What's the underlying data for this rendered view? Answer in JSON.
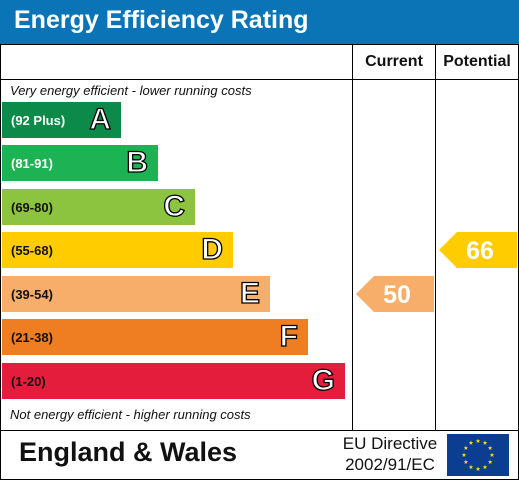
{
  "header": {
    "title": "Energy Efficiency Rating"
  },
  "columns": {
    "current": "Current",
    "potential": "Potential"
  },
  "notes": {
    "top": "Very energy efficient - lower running costs",
    "bottom": "Not energy efficient - higher running costs"
  },
  "bands": [
    {
      "range": "(92 Plus)",
      "letter": "A",
      "color": "#0b8a4a",
      "text_color": "#ffffff"
    },
    {
      "range": "(81-91)",
      "letter": "B",
      "color": "#1db354",
      "text_color": "#ffffff"
    },
    {
      "range": "(69-80)",
      "letter": "C",
      "color": "#8cc43f",
      "text_color": "#111111"
    },
    {
      "range": "(55-68)",
      "letter": "D",
      "color": "#ffcc00",
      "text_color": "#111111"
    },
    {
      "range": "(39-54)",
      "letter": "E",
      "color": "#f7ae6b",
      "text_color": "#111111"
    },
    {
      "range": "(21-38)",
      "letter": "F",
      "color": "#ef7d21",
      "text_color": "#111111"
    },
    {
      "range": "(1-20)",
      "letter": "G",
      "color": "#e41d3c",
      "text_color": "#111111"
    }
  ],
  "current": {
    "value": "50",
    "band": "E",
    "color": "#f7ae6b"
  },
  "potential": {
    "value": "66",
    "band": "D",
    "color": "#ffcc00"
  },
  "footer": {
    "region": "England & Wales",
    "directive_line1": "EU Directive",
    "directive_line2": "2002/91/EC",
    "flag_icon": "eu-flag-icon",
    "flag_color": "#0b3d91",
    "star_color": "#ffdd00"
  }
}
